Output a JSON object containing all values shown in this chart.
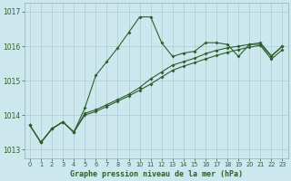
{
  "xlabel": "Graphe pression niveau de la mer (hPa)",
  "bg_color": "#cce8ee",
  "grid_color": "#aacccc",
  "line_color": "#2d5f2d",
  "xlim": [
    -0.5,
    23.5
  ],
  "ylim": [
    1012.75,
    1017.25
  ],
  "yticks": [
    1013,
    1014,
    1015,
    1016,
    1017
  ],
  "xticks": [
    0,
    1,
    2,
    3,
    4,
    5,
    6,
    7,
    8,
    9,
    10,
    11,
    12,
    13,
    14,
    15,
    16,
    17,
    18,
    19,
    20,
    21,
    22,
    23
  ],
  "series": [
    [
      1013.7,
      1013.2,
      1013.6,
      1013.8,
      1013.5,
      1014.2,
      1015.15,
      1015.55,
      1015.95,
      1016.4,
      1016.85,
      1016.85,
      1016.1,
      1015.7,
      1015.8,
      1015.85,
      1016.1,
      1016.1,
      1016.05,
      1015.7,
      1016.05,
      1016.05,
      1015.7,
      1016.0
    ],
    [
      1013.7,
      1013.2,
      1013.6,
      1013.8,
      1013.5,
      1014.05,
      1014.15,
      1014.3,
      1014.45,
      1014.6,
      1014.8,
      1015.05,
      1015.25,
      1015.45,
      1015.55,
      1015.65,
      1015.78,
      1015.88,
      1015.95,
      1016.0,
      1016.05,
      1016.1,
      1015.72,
      1016.0
    ],
    [
      1013.7,
      1013.2,
      1013.6,
      1013.8,
      1013.5,
      1014.0,
      1014.1,
      1014.25,
      1014.4,
      1014.55,
      1014.72,
      1014.9,
      1015.1,
      1015.3,
      1015.42,
      1015.52,
      1015.63,
      1015.73,
      1015.82,
      1015.9,
      1015.97,
      1016.02,
      1015.62,
      1015.9
    ]
  ]
}
